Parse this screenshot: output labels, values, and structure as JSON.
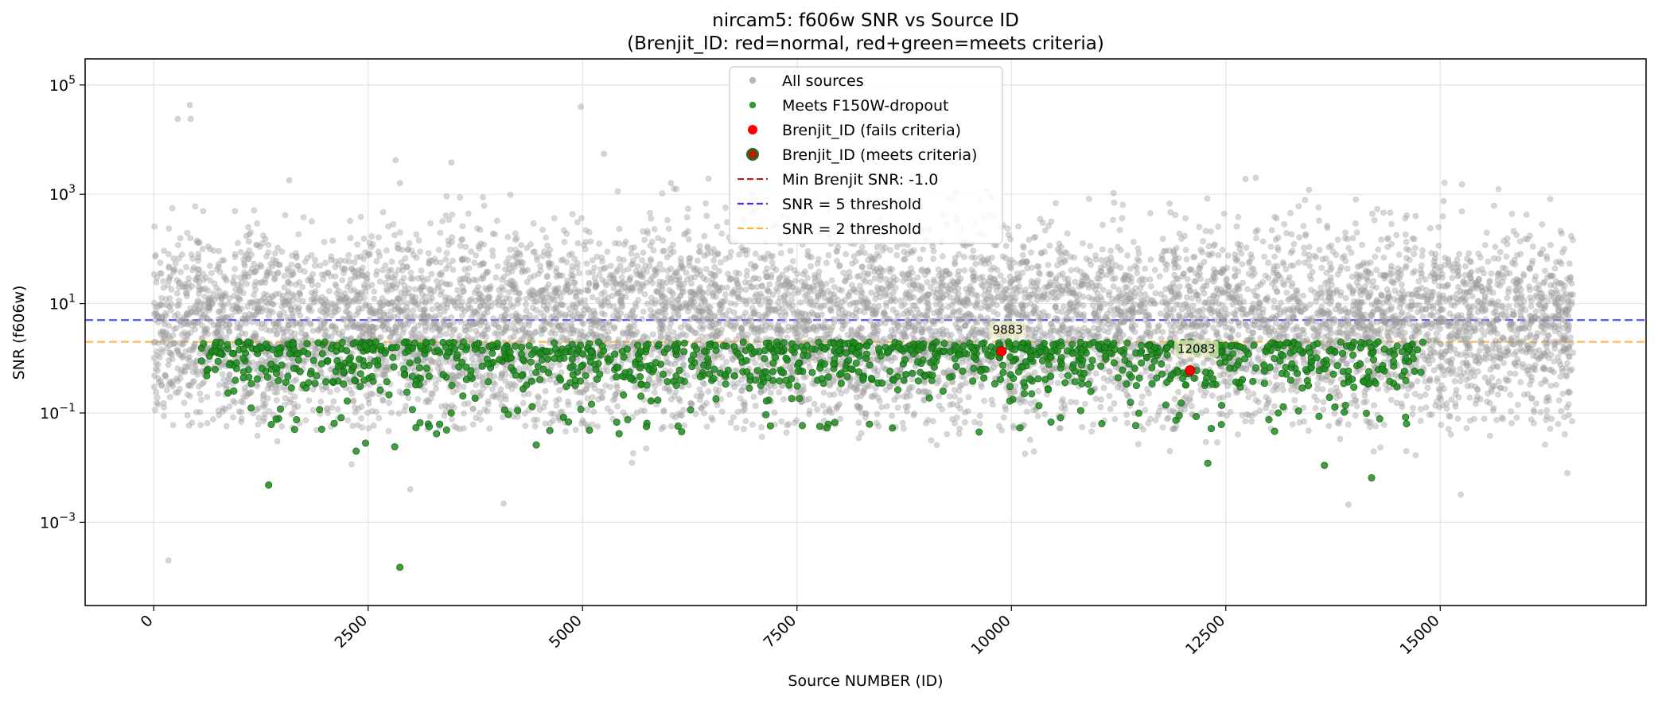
{
  "chart_data": {
    "type": "scatter",
    "title": "nircam5: f606w SNR vs Source ID",
    "subtitle": "(Brenjit_ID: red=normal, red+green=meets criteria)",
    "xlabel": "Source NUMBER (ID)",
    "ylabel": "SNR (f606w)",
    "y_scale": "log",
    "xlim": [
      -800,
      17400
    ],
    "ylim": [
      3e-05,
      300000
    ],
    "grid": true,
    "legend_position": "top-center",
    "x_ticks": [
      {
        "value": 0,
        "label": "0"
      },
      {
        "value": 2500,
        "label": "2500"
      },
      {
        "value": 5000,
        "label": "5000"
      },
      {
        "value": 7500,
        "label": "7500"
      },
      {
        "value": 10000,
        "label": "10000"
      },
      {
        "value": 12500,
        "label": "12500"
      },
      {
        "value": 15000,
        "label": "15000"
      }
    ],
    "y_ticks": [
      {
        "value": 0.001,
        "base": "10",
        "exp": "−3"
      },
      {
        "value": 0.1,
        "base": "10",
        "exp": "−1"
      },
      {
        "value": 10,
        "base": "10",
        "exp": "1"
      },
      {
        "value": 1000,
        "base": "10",
        "exp": "3"
      },
      {
        "value": 100000,
        "base": "10",
        "exp": "5"
      }
    ],
    "legend": [
      {
        "label": "All sources",
        "kind": "dot",
        "color": "#b0b0b0"
      },
      {
        "label": "Meets F150W-dropout",
        "kind": "dot",
        "color": "#1e8c1e"
      },
      {
        "label": "Brenjit_ID (fails criteria)",
        "kind": "bigdot",
        "color": "#ff0000"
      },
      {
        "label": "Brenjit_ID (meets criteria)",
        "kind": "ringdot",
        "color": "#cc1111",
        "edge": "#1e6e1e"
      },
      {
        "label": "Min Brenjit SNR: -1.0",
        "kind": "dash",
        "color": "#b22222"
      },
      {
        "label": "SNR = 5 threshold",
        "kind": "dash",
        "color": "#3333ff"
      },
      {
        "label": "SNR = 2 threshold",
        "kind": "dash",
        "color": "#ffb030"
      }
    ],
    "thresholds": [
      {
        "name": "SNR = 5 threshold",
        "value": 5,
        "color": "#3333ff"
      },
      {
        "name": "SNR = 2 threshold",
        "value": 2,
        "color": "#ffb030"
      }
    ],
    "series": [
      {
        "name": "All sources",
        "color": "#a0a0a0",
        "n_points": 16500,
        "x_range": [
          0,
          16550
        ],
        "typical_snr_range": [
          0.5,
          100
        ],
        "outliers": [
          [
            280,
            24000
          ],
          [
            420,
            43000
          ],
          [
            430,
            24000
          ],
          [
            3470,
            3800
          ],
          [
            2820,
            4200
          ],
          [
            2870,
            1600
          ],
          [
            5250,
            5500
          ],
          [
            4980,
            40000
          ],
          [
            6030,
            1600
          ],
          [
            7560,
            700
          ],
          [
            1580,
            1800
          ],
          [
            12730,
            1900
          ],
          [
            12850,
            2000
          ],
          [
            13470,
            1200
          ],
          [
            11190,
            1050
          ],
          [
            15040,
            750
          ],
          [
            170,
            0.0002
          ],
          [
            2990,
            0.004
          ],
          [
            4080,
            0.0022
          ],
          [
            13930,
            0.0021
          ],
          [
            15240,
            0.0032
          ],
          [
            1340,
            0.005
          ]
        ]
      },
      {
        "name": "Meets F150W-dropout",
        "color": "#1e8c1e",
        "n_points": 1200,
        "x_range": [
          550,
          14800
        ],
        "snr_range": [
          0.01,
          2
        ],
        "outliers": [
          [
            2870,
            0.00015
          ],
          [
            1340,
            0.0048
          ],
          [
            2360,
            0.02
          ],
          [
            2470,
            0.028
          ],
          [
            2810,
            0.024
          ],
          [
            4460,
            0.026
          ],
          [
            13650,
            0.011
          ],
          [
            14200,
            0.0065
          ],
          [
            12290,
            0.012
          ]
        ]
      },
      {
        "name": "Brenjit_ID (fails criteria)",
        "points": [
          {
            "x": 9883,
            "y": 1.35,
            "label": "9883"
          },
          {
            "x": 12083,
            "y": 0.6,
            "label": "12083"
          }
        ]
      }
    ]
  }
}
